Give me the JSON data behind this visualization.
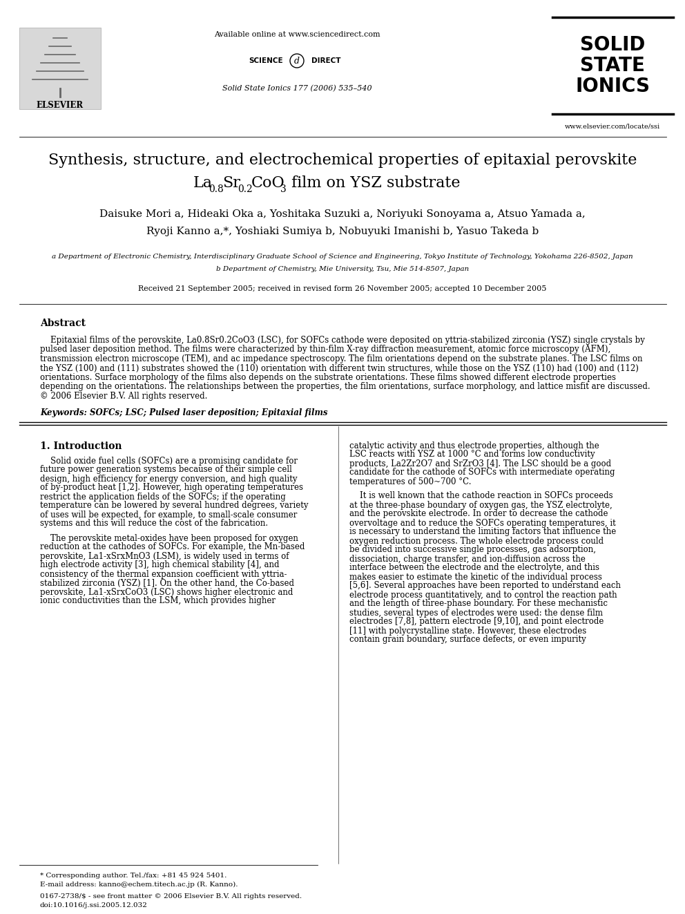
{
  "bg_color": "#ffffff",
  "title_line1": "Synthesis, structure, and electrochemical properties of epitaxial perovskite",
  "header_available": "Available online at www.sciencedirect.com",
  "header_journal": "Solid State Ionics 177 (2006) 535–540",
  "journal_name_line1": "SOLID",
  "journal_name_line2": "STATE",
  "journal_name_line3": "IONICS",
  "journal_url": "www.elsevier.com/locate/ssi",
  "elsevier_text": "ELSEVIER",
  "authors_line1": "Daisuke Mori a, Hideaki Oka a, Yoshitaka Suzuki a, Noriyuki Sonoyama a, Atsuo Yamada a,",
  "authors_line2": "Ryoji Kanno a,*, Yoshiaki Sumiya b, Nobuyuki Imanishi b, Yasuo Takeda b",
  "affil_a": "a Department of Electronic Chemistry, Interdisciplinary Graduate School of Science and Engineering, Tokyo Institute of Technology, Yokohama 226-8502, Japan",
  "affil_b": "b Department of Chemistry, Mie University, Tsu, Mie 514-8507, Japan",
  "received": "Received 21 September 2005; received in revised form 26 November 2005; accepted 10 December 2005",
  "abstract_title": "Abstract",
  "keywords": "Keywords: SOFCs; LSC; Pulsed laser deposition; Epitaxial films",
  "section1_title": "1. Introduction",
  "footnote_star": "* Corresponding author. Tel./fax: +81 45 924 5401.",
  "footnote_email": "E-mail address: kanno@echem.titech.ac.jp (R. Kanno).",
  "footnote_issn": "0167-2738/$ - see front matter © 2006 Elsevier B.V. All rights reserved.",
  "footnote_doi": "doi:10.1016/j.ssi.2005.12.032",
  "abstract_lines": [
    "    Epitaxial films of the perovskite, La0.8Sr0.2CoO3 (LSC), for SOFCs cathode were deposited on yttria-stabilized zirconia (YSZ) single crystals by",
    "pulsed laser deposition method. The films were characterized by thin-film X-ray diffraction measurement, atomic force microscopy (AFM),",
    "transmission electron microscope (TEM), and ac impedance spectroscopy. The film orientations depend on the substrate planes. The LSC films on",
    "the YSZ (100) and (111) substrates showed the (110) orientation with different twin structures, while those on the YSZ (110) had (100) and (112)",
    "orientations. Surface morphology of the films also depends on the substrate orientations. These films showed different electrode properties",
    "depending on the orientations. The relationships between the properties, the film orientations, surface morphology, and lattice misfit are discussed.",
    "© 2006 Elsevier B.V. All rights reserved."
  ],
  "col1_p1_lines": [
    "    Solid oxide fuel cells (SOFCs) are a promising candidate for",
    "future power generation systems because of their simple cell",
    "design, high efficiency for energy conversion, and high quality",
    "of by-product heat [1,2]. However, high operating temperatures",
    "restrict the application fields of the SOFCs; if the operating",
    "temperature can be lowered by several hundred degrees, variety",
    "of uses will be expected, for example, to small-scale consumer",
    "systems and this will reduce the cost of the fabrication."
  ],
  "col1_p2_lines": [
    "    The perovskite metal-oxides have been proposed for oxygen",
    "reduction at the cathodes of SOFCs. For example, the Mn-based",
    "perovskite, La1-xSrxMnO3 (LSM), is widely used in terms of",
    "high electrode activity [3], high chemical stability [4], and",
    "consistency of the thermal expansion coefficient with yttria-",
    "stabilized zirconia (YSZ) [1]. On the other hand, the Co-based",
    "perovskite, La1-xSrxCoO3 (LSC) shows higher electronic and",
    "ionic conductivities than the LSM, which provides higher"
  ],
  "col2_p1_lines": [
    "catalytic activity and thus electrode properties, although the",
    "LSC reacts with YSZ at 1000 °C and forms low conductivity",
    "products, La2Zr2O7 and SrZrO3 [4]. The LSC should be a good",
    "candidate for the cathode of SOFCs with intermediate operating",
    "temperatures of 500~700 °C."
  ],
  "col2_p2_lines": [
    "    It is well known that the cathode reaction in SOFCs proceeds",
    "at the three-phase boundary of oxygen gas, the YSZ electrolyte,",
    "and the perovskite electrode. In order to decrease the cathode",
    "overvoltage and to reduce the SOFCs operating temperatures, it",
    "is necessary to understand the limiting factors that influence the",
    "oxygen reduction process. The whole electrode process could",
    "be divided into successive single processes, gas adsorption,",
    "dissociation, charge transfer, and ion-diffusion across the",
    "interface between the electrode and the electrolyte, and this",
    "makes easier to estimate the kinetic of the individual process",
    "[5,6]. Several approaches have been reported to understand each",
    "electrode process quantitatively, and to control the reaction path",
    "and the length of three-phase boundary. For these mechanistic",
    "studies, several types of electrodes were used: the dense film",
    "electrodes [7,8], pattern electrode [9,10], and point electrode",
    "[11] with polycrystalline state. However, these electrodes",
    "contain grain boundary, surface defects, or even impurity"
  ]
}
